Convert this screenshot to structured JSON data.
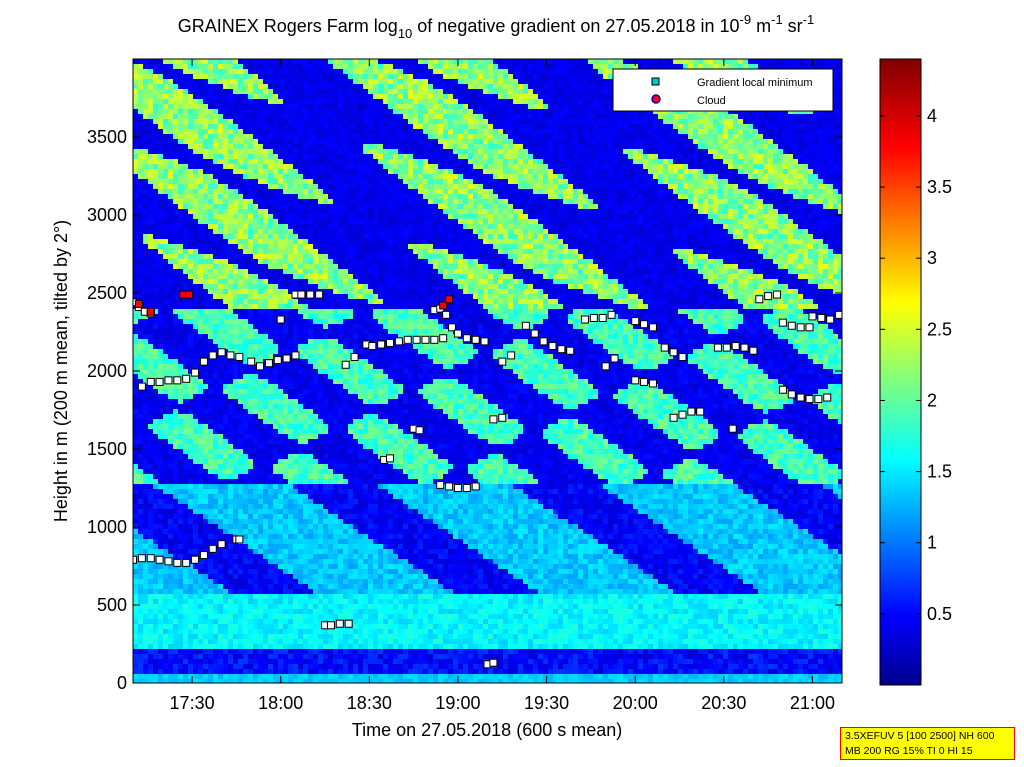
{
  "chart_data": {
    "type": "heatmap",
    "title": {
      "pre": "GRAINEX Rogers Farm log",
      "sub": "10",
      "mid1": " of negative gradient on 27.05.2018 in 10",
      "sup1": "-9",
      "mid2": " m",
      "sup2": "-1",
      "mid3": " sr",
      "sup3": "-1"
    },
    "xlabel": "Time on 27.05.2018 (600 s mean)",
    "ylabel": "Height in m (200 m mean, tilted by 2°)",
    "x_range": [
      "17:10",
      "21:10"
    ],
    "x_ticks": [
      "17:30",
      "18:00",
      "18:30",
      "19:00",
      "19:30",
      "20:00",
      "20:30",
      "21:00"
    ],
    "ylim": [
      0,
      4000
    ],
    "y_ticks": [
      0,
      500,
      1000,
      1500,
      2000,
      2500,
      3000,
      3500
    ],
    "colorbar": {
      "range": [
        0,
        4.4
      ],
      "ticks": [
        0.5,
        1,
        1.5,
        2,
        2.5,
        3,
        3.5,
        4
      ],
      "tick_labels": [
        "0.5",
        "1",
        "1.5",
        "2",
        "2.5",
        "3",
        "3.5",
        "4"
      ],
      "colormap": "jet"
    },
    "legend": {
      "position": "top-right",
      "entries": [
        {
          "label": "Gradient local minimum",
          "marker": "square",
          "color": "#00c8c8"
        },
        {
          "label": "Cloud",
          "marker": "circle",
          "color": "#ff0000"
        }
      ]
    },
    "gradient_minimum_series": [
      {
        "x": [
          "17:10",
          "17:13",
          "17:16",
          "17:19",
          "17:22",
          "17:25",
          "17:28",
          "17:31",
          "17:34",
          "17:37",
          "17:40",
          "17:45",
          "17:46"
        ],
        "y": [
          790,
          800,
          800,
          790,
          780,
          770,
          770,
          790,
          820,
          860,
          890,
          920,
          920
        ]
      },
      {
        "x": [
          "17:13",
          "17:16",
          "17:19",
          "17:22",
          "17:25",
          "17:28",
          "17:31",
          "17:34",
          "17:37",
          "17:40",
          "17:43",
          "17:46",
          "17:50",
          "17:53",
          "17:56",
          "17:59",
          "18:02",
          "18:05"
        ],
        "y": [
          1900,
          1930,
          1930,
          1940,
          1940,
          1950,
          1990,
          2060,
          2100,
          2120,
          2100,
          2090,
          2060,
          2030,
          2050,
          2070,
          2080,
          2100
        ]
      },
      {
        "x": [
          "17:10",
          "17:12",
          "17:14",
          "17:16"
        ],
        "y": [
          2440,
          2410,
          2380,
          2370
        ]
      },
      {
        "x": [
          "17:27",
          "17:29"
        ],
        "y": [
          2490,
          2490
        ]
      },
      {
        "x": [
          "18:05",
          "18:07",
          "18:10",
          "18:13"
        ],
        "y": [
          2490,
          2490,
          2490,
          2490
        ]
      },
      {
        "x": [
          "18:00"
        ],
        "y": [
          2330
        ]
      },
      {
        "x": [
          "18:15",
          "18:17",
          "18:20",
          "18:23"
        ],
        "y": [
          370,
          370,
          380,
          380
        ]
      },
      {
        "x": [
          "18:22",
          "18:25"
        ],
        "y": [
          2040,
          2090
        ]
      },
      {
        "x": [
          "18:29"
        ],
        "y": [
          2170
        ]
      },
      {
        "x": [
          "18:31",
          "18:34",
          "18:37",
          "18:40",
          "18:43",
          "18:46",
          "18:49",
          "18:52",
          "18:55"
        ],
        "y": [
          2160,
          2170,
          2180,
          2190,
          2200,
          2200,
          2200,
          2200,
          2210
        ]
      },
      {
        "x": [
          "18:35",
          "18:37"
        ],
        "y": [
          1430,
          1440
        ]
      },
      {
        "x": [
          "18:45",
          "18:47"
        ],
        "y": [
          1630,
          1620
        ]
      },
      {
        "x": [
          "18:52",
          "18:54",
          "18:56",
          "18:58",
          "19:00",
          "19:03",
          "19:06",
          "19:09"
        ],
        "y": [
          2390,
          2400,
          2360,
          2280,
          2240,
          2210,
          2200,
          2190
        ]
      },
      {
        "x": [
          "18:54",
          "18:57",
          "19:00",
          "19:03",
          "19:06"
        ],
        "y": [
          1270,
          1260,
          1250,
          1250,
          1260
        ]
      },
      {
        "x": [
          "19:10",
          "19:12"
        ],
        "y": [
          120,
          130
        ]
      },
      {
        "x": [
          "19:12",
          "19:15"
        ],
        "y": [
          1690,
          1700
        ]
      },
      {
        "x": [
          "19:15",
          "19:18"
        ],
        "y": [
          2060,
          2100
        ]
      },
      {
        "x": [
          "19:23",
          "19:26",
          "19:29",
          "19:32",
          "19:35",
          "19:38"
        ],
        "y": [
          2290,
          2240,
          2190,
          2160,
          2140,
          2130
        ]
      },
      {
        "x": [
          "19:43",
          "19:46",
          "19:49",
          "19:52"
        ],
        "y": [
          2330,
          2340,
          2340,
          2360
        ]
      },
      {
        "x": [
          "19:50",
          "19:53"
        ],
        "y": [
          2030,
          2080
        ]
      },
      {
        "x": [
          "20:00",
          "20:03",
          "20:06"
        ],
        "y": [
          2320,
          2300,
          2280
        ]
      },
      {
        "x": [
          "20:00",
          "20:03",
          "20:06"
        ],
        "y": [
          1940,
          1930,
          1920
        ]
      },
      {
        "x": [
          "20:10",
          "20:13",
          "20:16"
        ],
        "y": [
          2150,
          2120,
          2090
        ]
      },
      {
        "x": [
          "20:13",
          "20:16",
          "20:19",
          "20:22"
        ],
        "y": [
          1700,
          1720,
          1740,
          1740
        ]
      },
      {
        "x": [
          "20:28",
          "20:31",
          "20:34",
          "20:37",
          "20:40"
        ],
        "y": [
          2150,
          2150,
          2160,
          2150,
          2130
        ]
      },
      {
        "x": [
          "20:33"
        ],
        "y": [
          1630
        ]
      },
      {
        "x": [
          "20:42",
          "20:45",
          "20:48"
        ],
        "y": [
          2460,
          2480,
          2490
        ]
      },
      {
        "x": [
          "20:50",
          "20:53",
          "20:56",
          "20:59"
        ],
        "y": [
          2310,
          2290,
          2280,
          2280
        ]
      },
      {
        "x": [
          "20:50",
          "20:53",
          "20:56",
          "20:59",
          "21:02",
          "21:05"
        ],
        "y": [
          1880,
          1850,
          1830,
          1820,
          1820,
          1830
        ]
      },
      {
        "x": [
          "21:00",
          "21:03",
          "21:06",
          "21:09"
        ],
        "y": [
          2350,
          2340,
          2330,
          2360
        ]
      }
    ],
    "cloud_points": {
      "x": [
        "17:12",
        "17:16",
        "17:27",
        "17:29",
        "18:55",
        "18:57"
      ],
      "y": [
        2430,
        2380,
        2490,
        2490,
        2420,
        2460
      ]
    }
  },
  "info_box": {
    "line1": "3.5XEFUV 5 [100 2500] NH 600",
    "line2": "MB 200 RG 15% TI 0 HI 15"
  }
}
